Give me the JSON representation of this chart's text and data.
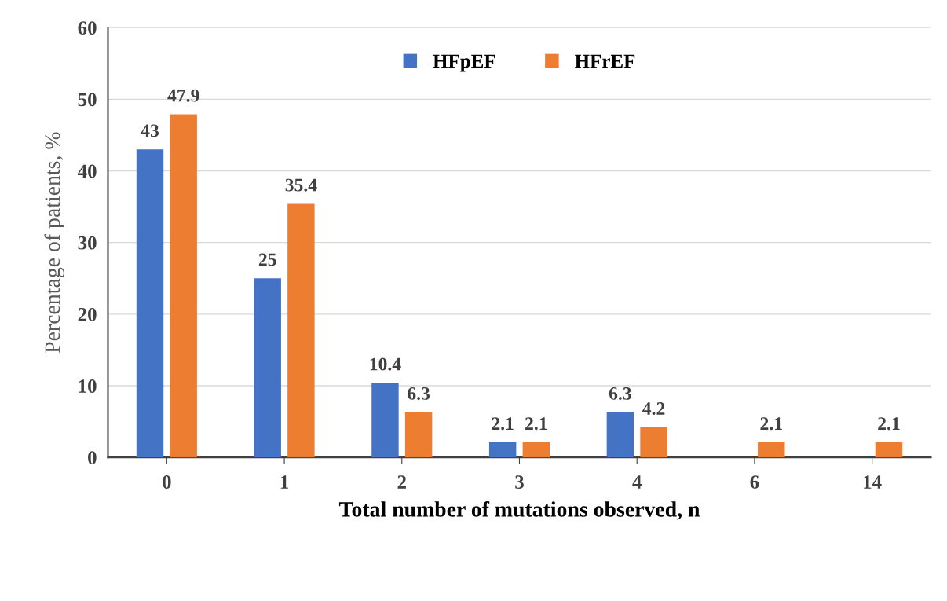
{
  "chart_data": {
    "type": "bar",
    "xlabel": "Total number of mutations observed, n",
    "ylabel": "Percentage of patients, %",
    "categories": [
      "0",
      "1",
      "2",
      "3",
      "4",
      "6",
      "14"
    ],
    "series": [
      {
        "name": "HFpEF",
        "color": "#4472c4",
        "values": [
          43,
          25,
          10.4,
          2.1,
          6.3,
          null,
          null
        ]
      },
      {
        "name": "HFrEF",
        "color": "#ed7d31",
        "values": [
          47.9,
          35.4,
          6.3,
          2.1,
          4.2,
          2.1,
          2.1
        ]
      }
    ],
    "ylim": [
      0,
      60
    ],
    "yticks": [
      0,
      10,
      20,
      30,
      40,
      50,
      60
    ],
    "grid": "y",
    "legend": "top",
    "data_labels": true
  }
}
